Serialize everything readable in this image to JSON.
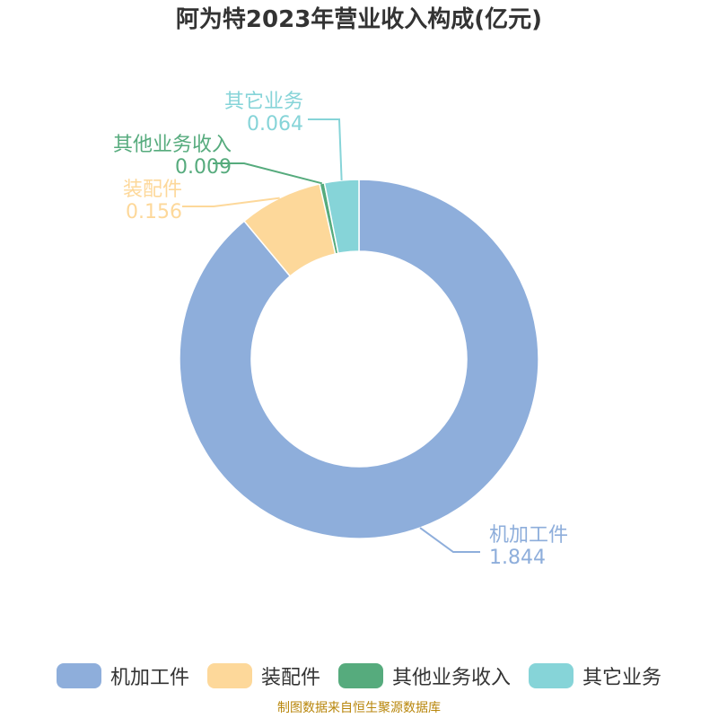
{
  "title": "阿为特2023年营业收入构成(亿元)",
  "chart_data": {
    "type": "pie",
    "title": "阿为特2023年营业收入构成(亿元)",
    "donut": true,
    "slices": [
      {
        "name": "机加工件",
        "value": 1.844,
        "value_label": "1.844",
        "color": "#8eaedb"
      },
      {
        "name": "装配件",
        "value": 0.156,
        "value_label": "0.156",
        "color": "#fdd89a"
      },
      {
        "name": "其他业务收入",
        "value": 0.009,
        "value_label": "0.009",
        "color": "#56ab7d"
      },
      {
        "name": "其它业务",
        "value": 0.064,
        "value_label": "0.064",
        "color": "#86d4d8"
      }
    ],
    "legend_position": "bottom"
  },
  "source": "制图数据来自恒生聚源数据库"
}
